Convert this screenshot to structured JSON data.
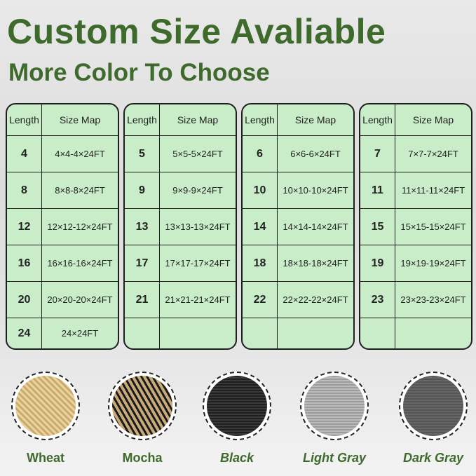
{
  "title": "Custom Size Avaliable",
  "subtitle": "More Color To Choose",
  "table_headers": {
    "length": "Length",
    "size_map": "Size Map"
  },
  "tables": [
    {
      "rows": [
        [
          "4",
          "4×4-4×24FT"
        ],
        [
          "8",
          "8×8-8×24FT"
        ],
        [
          "12",
          "12×12-12×24FT"
        ],
        [
          "16",
          "16×16-16×24FT"
        ],
        [
          "20",
          "20×20-20×24FT"
        ],
        [
          "24",
          "24×24FT"
        ]
      ]
    },
    {
      "rows": [
        [
          "5",
          "5×5-5×24FT"
        ],
        [
          "9",
          "9×9-9×24FT"
        ],
        [
          "13",
          "13×13-13×24FT"
        ],
        [
          "17",
          "17×17-17×24FT"
        ],
        [
          "21",
          "21×21-21×24FT"
        ],
        [
          "",
          ""
        ]
      ]
    },
    {
      "rows": [
        [
          "6",
          "6×6-6×24FT"
        ],
        [
          "10",
          "10×10-10×24FT"
        ],
        [
          "14",
          "14×14-14×24FT"
        ],
        [
          "18",
          "18×18-18×24FT"
        ],
        [
          "22",
          "22×22-22×24FT"
        ],
        [
          "",
          ""
        ]
      ]
    },
    {
      "rows": [
        [
          "7",
          "7×7-7×24FT"
        ],
        [
          "11",
          "11×11-11×24FT"
        ],
        [
          "15",
          "15×15-15×24FT"
        ],
        [
          "19",
          "19×19-19×24FT"
        ],
        [
          "23",
          "23×23-23×24FT"
        ],
        [
          "",
          ""
        ]
      ]
    }
  ],
  "colors": [
    {
      "label": "Wheat",
      "swatch": "#d9bf86",
      "italic": false
    },
    {
      "label": "Mocha",
      "swatch": "#8a7350",
      "italic": false
    },
    {
      "label": "Black",
      "swatch": "#2a2a2a",
      "italic": true
    },
    {
      "label": "Light Gray",
      "swatch": "#a9a9a9",
      "italic": true
    },
    {
      "label": "Dark Gray",
      "swatch": "#5c5c5c",
      "italic": true
    }
  ],
  "accent": "#3e6b2b",
  "table_bg": "#c8edc8"
}
